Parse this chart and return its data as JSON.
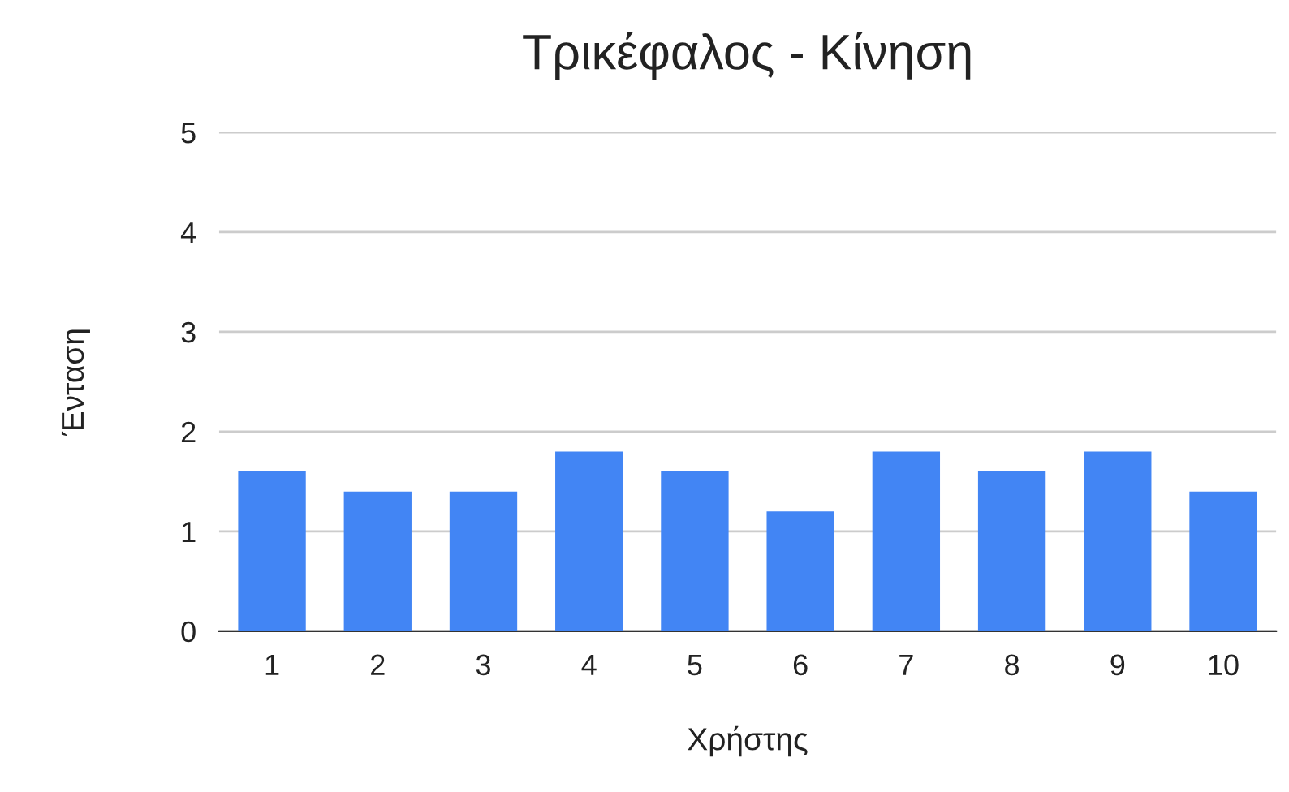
{
  "chart_data": {
    "type": "bar",
    "title": "Τρικέφαλος - Κίνηση",
    "xlabel": "Χρήστης",
    "ylabel": "Ένταση",
    "categories": [
      "1",
      "2",
      "3",
      "4",
      "5",
      "6",
      "7",
      "8",
      "9",
      "10"
    ],
    "values": [
      1.6,
      1.4,
      1.4,
      1.8,
      1.6,
      1.2,
      1.8,
      1.6,
      1.8,
      1.4
    ],
    "color": "#4285f4",
    "ylim": [
      0,
      5
    ],
    "yticks": [
      0,
      1,
      2,
      3,
      4,
      5
    ],
    "grid": "y",
    "legend": false
  }
}
